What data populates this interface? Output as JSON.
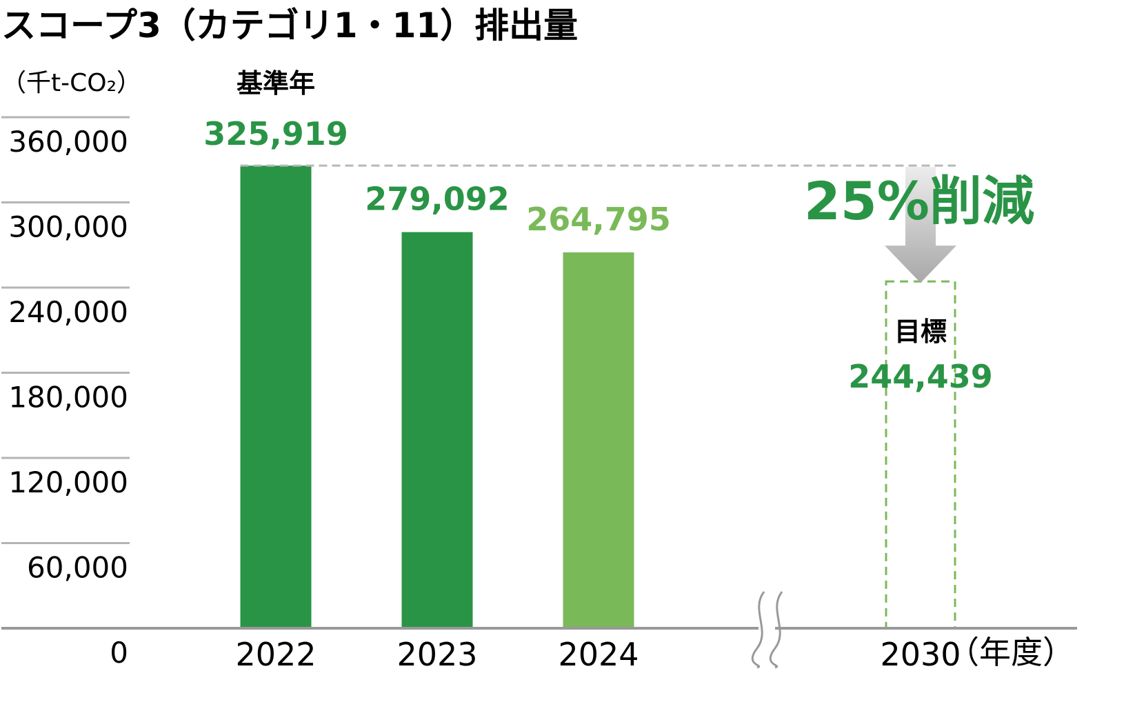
{
  "chart_data": {
    "type": "bar",
    "title": "スコープ3（カテゴリ1・11）排出量",
    "unit_label": "（千t-CO₂）",
    "x_unit_label": "（年度）",
    "categories": [
      "2022",
      "2023",
      "2024",
      "2030"
    ],
    "values": [
      325919,
      279092,
      264795,
      244439
    ],
    "value_labels": [
      "325,919",
      "279,092",
      "264,795",
      "244,439"
    ],
    "bar_styles": [
      "solid",
      "solid",
      "solid",
      "target-dashed"
    ],
    "bar_colors": [
      "#2a9446",
      "#2a9446",
      "#7ab958",
      "#7ab958"
    ],
    "label_colors": [
      "#2a9446",
      "#2a9446",
      "#7ab958",
      "#2a9446"
    ],
    "ylim": [
      0,
      380000
    ],
    "yticks": [
      0,
      60000,
      120000,
      180000,
      240000,
      300000,
      360000
    ],
    "ytick_labels": [
      "0",
      "60,000",
      "120,000",
      "180,000",
      "240,000",
      "300,000",
      "360,000"
    ],
    "axis_break_between": [
      "2024",
      "2030"
    ],
    "annotations": {
      "base_year": "基準年",
      "target": "目標",
      "reduction": "25%削減"
    }
  },
  "colors": {
    "dark_green": "#2a9446",
    "light_green": "#7ab958",
    "grid": "#b4b4b4",
    "axis": "#999999",
    "arrow_top": "#e6e6e6",
    "arrow_bottom": "#a8a8a8"
  }
}
